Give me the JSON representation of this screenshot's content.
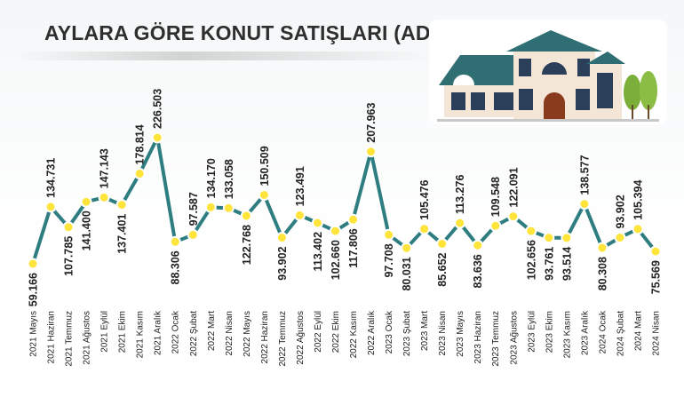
{
  "title": "AYLARA GÖRE KONUT SATIŞLARI (ADET)",
  "colors": {
    "line": "#2e7d80",
    "marker_fill": "#ffe53b",
    "marker_stroke": "#ffffff",
    "text": "#222222",
    "roof": "#2f6f73",
    "wall": "#f3e6d6",
    "door": "#8a3b1e",
    "tree": "#7cae3a"
  },
  "icons": {
    "illustration": "house-illustration-icon"
  },
  "chart_data": {
    "type": "line",
    "title": "AYLARA GÖRE KONUT SATIŞLARI (ADET)",
    "xlabel": "",
    "ylabel": "",
    "grid": false,
    "legend": "none",
    "ylim": [
      50000,
      240000
    ],
    "categories": [
      "2021 Mayıs",
      "2021 Haziran",
      "2021 Temmuz",
      "2021 Ağustos",
      "2021 Eylül",
      "2021 Ekim",
      "2021 Kasım",
      "2021 Aralık",
      "2022 Ocak",
      "2022 Şubat",
      "2022 Mart",
      "2022 Nisan",
      "2022 Mayıs",
      "2022 Haziran",
      "2022 Temmuz",
      "2022 Ağustos",
      "2022 Eylül",
      "2022 Ekim",
      "2022 Kasım",
      "2022 Aralık",
      "2023 Ocak",
      "2023 Şubat",
      "2023 Mart",
      "2023 Nisan",
      "2023 Mayıs",
      "2023 Haziran",
      "2023 Temmuz",
      "2023 Ağustos",
      "2023 Eylül",
      "2023 Ekim",
      "2023 Kasım",
      "2023 Aralık",
      "2024 Ocak",
      "2024 Şubat",
      "2024 Mart",
      "2024 Nisan"
    ],
    "values": [
      59166,
      134731,
      107785,
      141400,
      147143,
      137401,
      178814,
      226503,
      88306,
      97587,
      134170,
      133058,
      122768,
      150509,
      93902,
      123491,
      113402,
      102660,
      117806,
      207963,
      97708,
      80031,
      105476,
      85652,
      113276,
      83636,
      109548,
      122091,
      102656,
      93761,
      93514,
      138577,
      80308,
      93902,
      105394,
      75569
    ],
    "labels": [
      "59.166",
      "134.731",
      "107.785",
      "141.400",
      "147.143",
      "137.401",
      "178.814",
      "226.503",
      "88.306",
      "97.587",
      "134.170",
      "133.058",
      "122.768",
      "150.509",
      "93.902",
      "123.491",
      "113.402",
      "102.660",
      "117.806",
      "207.963",
      "97.708",
      "80.031",
      "105.476",
      "85.652",
      "113.276",
      "83.636",
      "109.548",
      "122.091",
      "102.656",
      "93.761",
      "93.514",
      "138.577",
      "80.308",
      "93.902",
      "105.394",
      "75.569"
    ],
    "label_side": [
      "below",
      "above",
      "below",
      "below",
      "above",
      "below",
      "above",
      "above",
      "below",
      "above",
      "above",
      "above",
      "below",
      "above",
      "below",
      "above",
      "below",
      "below",
      "below",
      "above",
      "below",
      "below",
      "above",
      "below",
      "above",
      "below",
      "above",
      "above",
      "below",
      "below",
      "below",
      "above",
      "below",
      "above",
      "above",
      "below"
    ]
  }
}
